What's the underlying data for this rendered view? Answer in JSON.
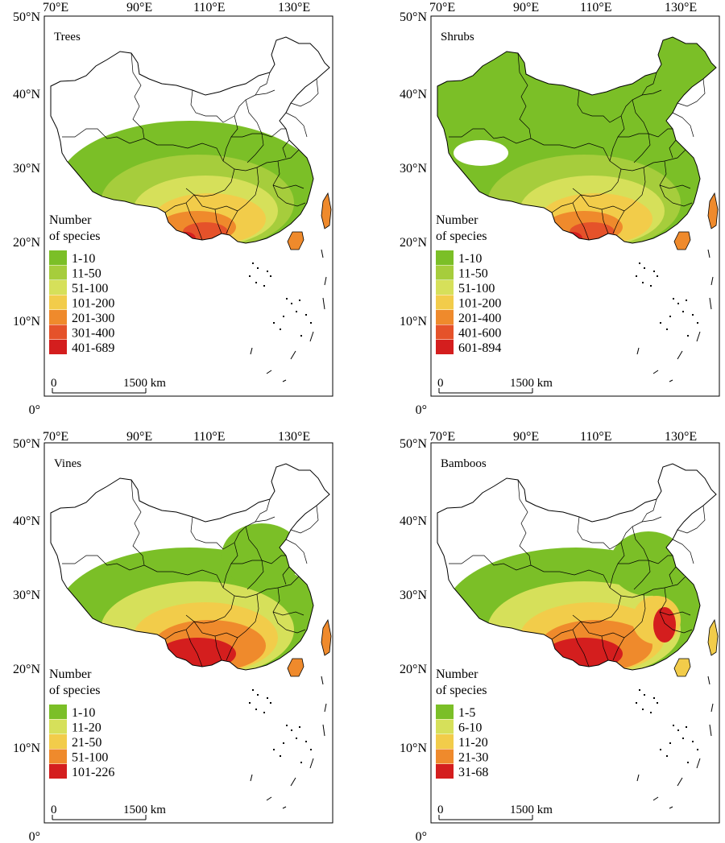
{
  "axis": {
    "lon_labels": [
      "70°E",
      "90°E",
      "110°E",
      "130°E"
    ],
    "lat_labels": [
      "50°N",
      "40°N",
      "30°N",
      "20°N",
      "10°N",
      "0°"
    ]
  },
  "scalebar": {
    "zero": "0",
    "label": "1500 km"
  },
  "legend_title": [
    "Number",
    "of species"
  ],
  "colors": {
    "c1": "#7bbf27",
    "c2": "#a6cd3c",
    "c3": "#d6e05a",
    "c4": "#f2cc4a",
    "c5": "#ef8a2c",
    "c6": "#e5522a",
    "c7": "#d41e1e"
  },
  "panels": [
    {
      "title": "Trees",
      "legend": [
        "1-10",
        "11-50",
        "51-100",
        "101-200",
        "201-300",
        "301-400",
        "401-689"
      ]
    },
    {
      "title": "Shrubs",
      "legend": [
        "1-10",
        "11-50",
        "51-100",
        "101-200",
        "201-400",
        "401-600",
        "601-894"
      ]
    },
    {
      "title": "Vines",
      "legend": [
        "1-10",
        "11-20",
        "21-50",
        "51-100",
        "101-226"
      ]
    },
    {
      "title": "Bamboos",
      "legend": [
        "1-5",
        "6-10",
        "11-20",
        "21-30",
        "31-68"
      ]
    }
  ]
}
